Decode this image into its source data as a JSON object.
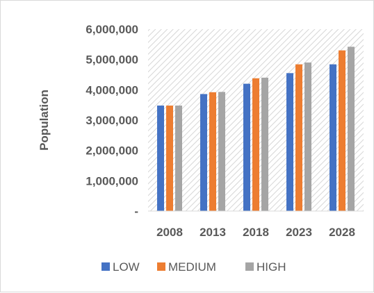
{
  "chart_data": {
    "type": "bar",
    "categories": [
      "2008",
      "2013",
      "2018",
      "2023",
      "2028"
    ],
    "series": [
      {
        "name": "LOW",
        "color": "#4472c4",
        "values": [
          3480000,
          3860000,
          4200000,
          4550000,
          4840000
        ]
      },
      {
        "name": "MEDIUM",
        "color": "#ed7d31",
        "values": [
          3480000,
          3920000,
          4380000,
          4840000,
          5300000
        ]
      },
      {
        "name": "HIGH",
        "color": "#a5a5a5",
        "values": [
          3480000,
          3930000,
          4400000,
          4900000,
          5420000
        ]
      }
    ],
    "ylabel": "Population",
    "xlabel": "",
    "ylim": [
      0,
      6000000
    ],
    "yticks": [
      0,
      1000000,
      2000000,
      3000000,
      4000000,
      5000000,
      6000000
    ],
    "ytick_labels": [
      "-",
      "1,000,000",
      "2,000,000",
      "3,000,000",
      "4,000,000",
      "5,000,000",
      "6,000,000"
    ],
    "grid": false,
    "plot_background": "diagonal hatch",
    "legend_position": "bottom"
  }
}
